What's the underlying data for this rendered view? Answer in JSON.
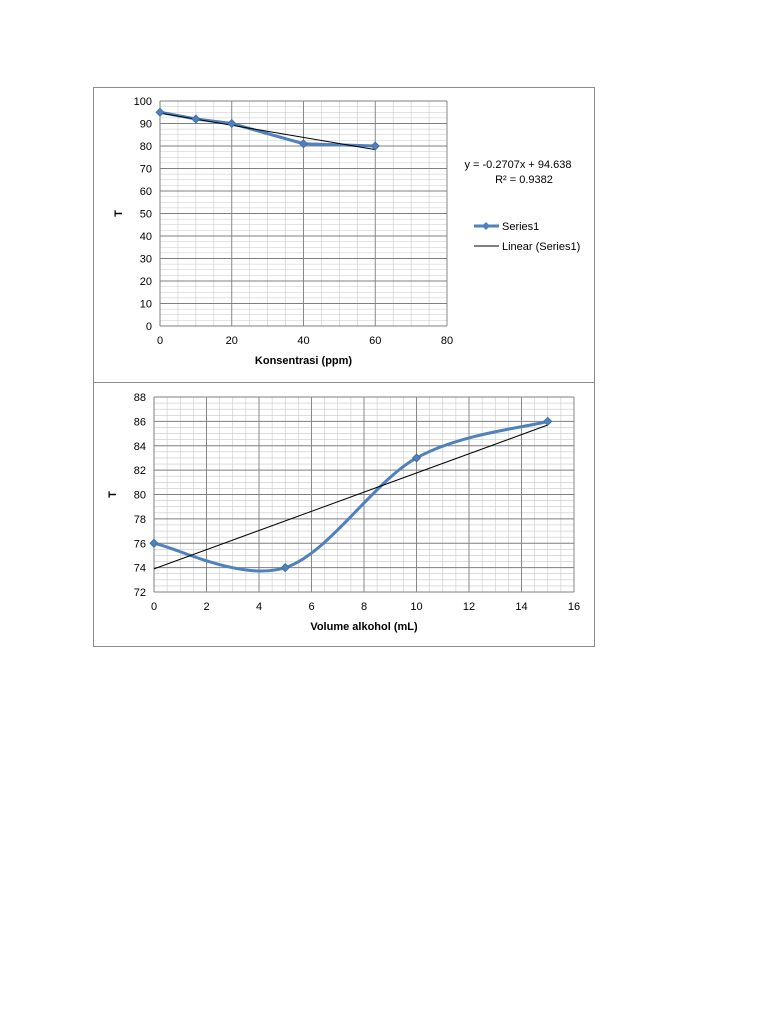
{
  "chart_data": [
    {
      "type": "scatter",
      "xlabel": "Konsentrasi (ppm)",
      "ylabel": "T",
      "xlim": [
        0,
        80
      ],
      "ylim": [
        0,
        100
      ],
      "xticks": [
        "0",
        "20",
        "40",
        "60",
        "80"
      ],
      "yticks": [
        "0",
        "10",
        "20",
        "30",
        "40",
        "50",
        "60",
        "70",
        "80",
        "90",
        "100"
      ],
      "grid": "on (major and minor)",
      "smooth": false,
      "series": [
        {
          "name": "Series1",
          "color": "#4f81bd",
          "marker": "diamond",
          "x": [
            0,
            10,
            20,
            40,
            60
          ],
          "y": [
            95,
            92,
            90,
            81,
            80
          ]
        }
      ],
      "trendline": {
        "name": "Linear (Series1)",
        "color": "#000000",
        "slope": -0.2707,
        "intercept": 94.638,
        "x_range": [
          0,
          60
        ]
      },
      "equation": "y = -0.2707x + 94.638",
      "r_squared": "R² = 0.9382",
      "legend_position": "right"
    },
    {
      "type": "scatter",
      "xlabel": "Volume alkohol (mL)",
      "ylabel": "T",
      "xlim": [
        0,
        16
      ],
      "ylim": [
        72,
        88
      ],
      "xticks": [
        "0",
        "2",
        "4",
        "6",
        "8",
        "10",
        "12",
        "14",
        "16"
      ],
      "yticks": [
        "72",
        "74",
        "76",
        "78",
        "80",
        "82",
        "84",
        "86",
        "88"
      ],
      "grid": "on (major and minor)",
      "smooth": true,
      "series": [
        {
          "name": "",
          "color": "#4f81bd",
          "marker": "diamond",
          "x": [
            0,
            5,
            10,
            15
          ],
          "y": [
            76,
            74,
            83,
            86
          ]
        }
      ],
      "trendline": {
        "name": "",
        "color": "#000000",
        "x_range": [
          0,
          15
        ],
        "y_at_start": 73.9,
        "y_at_end": 85.7
      }
    }
  ]
}
